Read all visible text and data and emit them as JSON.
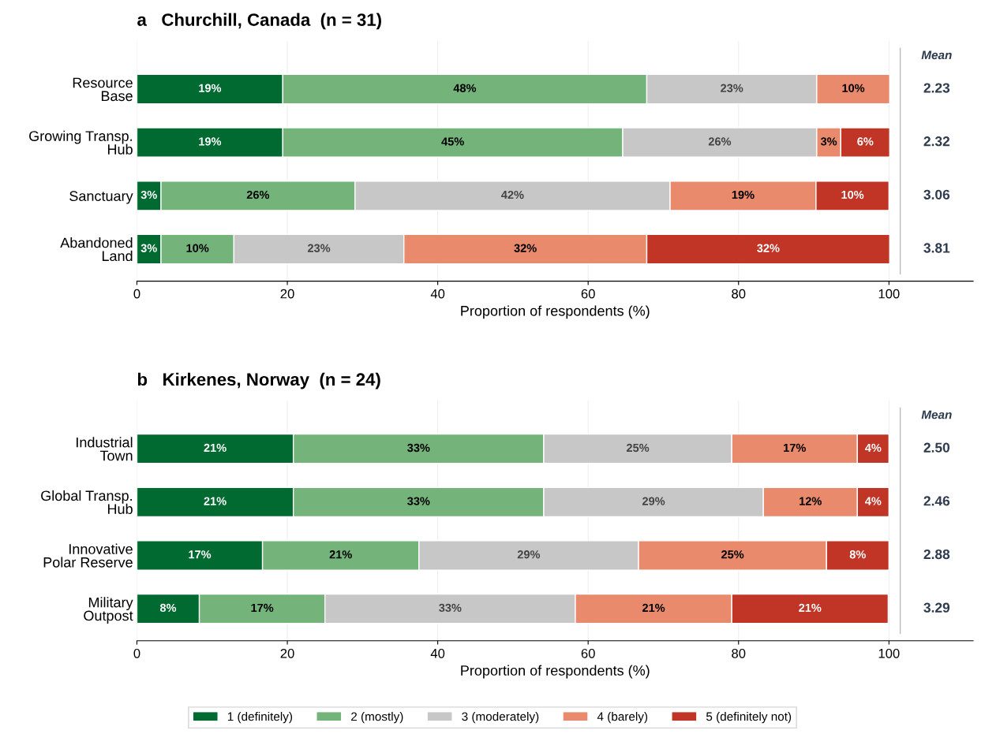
{
  "chart_data": [
    {
      "type": "bar",
      "orientation": "horizontal",
      "stacked": true,
      "title": "a   Churchill, Canada  (n = 31)",
      "xlabel": "Proportion of respondents (%)",
      "categories": [
        "Resource\nBase",
        "Growing Transp.\nHub",
        "Sanctuary",
        "Abandoned\nLand"
      ],
      "series": [
        {
          "color": "#006a30",
          "values": [
            19.4,
            19.4,
            3.2,
            3.2
          ],
          "value_labels": [
            "19%",
            "19%",
            "3%",
            "3%"
          ]
        },
        {
          "color": "#74b47a",
          "values": [
            48.4,
            45.2,
            25.8,
            9.7
          ],
          "value_labels": [
            "48%",
            "45%",
            "26%",
            "10%"
          ]
        },
        {
          "color": "#c7c7c7",
          "values": [
            22.6,
            25.8,
            41.9,
            22.6
          ],
          "value_labels": [
            "23%",
            "26%",
            "42%",
            "23%"
          ]
        },
        {
          "color": "#ea8a6c",
          "values": [
            9.7,
            3.2,
            19.4,
            32.3
          ],
          "value_labels": [
            "10%",
            "3%",
            "19%",
            "32%"
          ]
        },
        {
          "color": "#c03526",
          "values": [
            null,
            6.5,
            9.7,
            32.3
          ],
          "value_labels": [
            null,
            "6%",
            "10%",
            "32%"
          ]
        }
      ],
      "xlim": [
        0,
        111.2
      ],
      "xticks": [
        0,
        20,
        40,
        60,
        80,
        100
      ],
      "grid": "x",
      "ref_lines": [
        {
          "axis": "x",
          "value": 101.5,
          "color": "#bbbbbb"
        }
      ],
      "annotations": [
        "Mean",
        "2.23",
        "2.32",
        "3.06",
        "3.81"
      ]
    },
    {
      "type": "bar",
      "orientation": "horizontal",
      "stacked": true,
      "title": "b   Kirkenes, Norway  (n = 24)",
      "xlabel": "Proportion of respondents (%)",
      "categories": [
        "Industrial\nTown",
        "Global Transp.\nHub",
        "Innovative\nPolar Reserve",
        "Military\nOutpost"
      ],
      "series": [
        {
          "name": "1 (definitely)",
          "color": "#006a30",
          "values": [
            20.8,
            20.8,
            16.7,
            8.3
          ],
          "value_labels": [
            "21%",
            "21%",
            "17%",
            "8%"
          ]
        },
        {
          "name": "2 (mostly)",
          "color": "#74b47a",
          "values": [
            33.3,
            33.3,
            20.8,
            16.7
          ],
          "value_labels": [
            "33%",
            "33%",
            "21%",
            "17%"
          ]
        },
        {
          "name": "3 (moderately)",
          "color": "#c7c7c7",
          "values": [
            25.0,
            29.2,
            29.2,
            33.3
          ],
          "value_labels": [
            "25%",
            "29%",
            "29%",
            "33%"
          ]
        },
        {
          "name": "4 (barely)",
          "color": "#ea8a6c",
          "values": [
            16.7,
            12.5,
            25.0,
            20.8
          ],
          "value_labels": [
            "17%",
            "12%",
            "25%",
            "21%"
          ]
        },
        {
          "name": "5 (definitely not)",
          "color": "#c03526",
          "values": [
            4.2,
            4.2,
            8.3,
            20.8
          ],
          "value_labels": [
            "4%",
            "4%",
            "8%",
            "21%"
          ]
        }
      ],
      "xlim": [
        0,
        111.2
      ],
      "xticks": [
        0,
        20,
        40,
        60,
        80,
        100
      ],
      "grid": "x",
      "legend": "bottom",
      "ref_lines": [
        {
          "axis": "x",
          "value": 101.5,
          "color": "#bbbbbb"
        }
      ],
      "annotations": [
        "Mean",
        "2.50",
        "2.46",
        "2.88",
        "3.29"
      ]
    }
  ]
}
